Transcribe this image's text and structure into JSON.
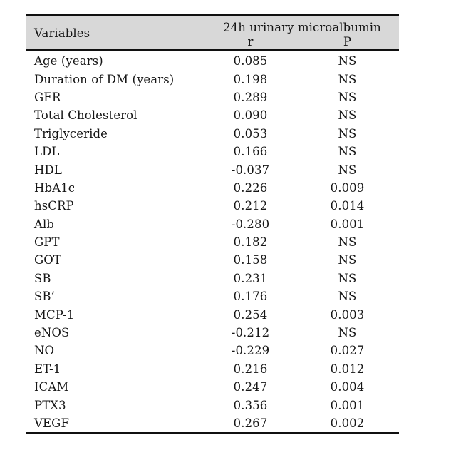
{
  "table": {
    "header": {
      "variables_label": "Variables",
      "group_label": "24h urinary microalbumin",
      "r_label": "r",
      "p_label": "P"
    },
    "rows": [
      {
        "variable": "Age (years)",
        "r": "0.085",
        "p": "NS"
      },
      {
        "variable": "Duration of DM (years)",
        "r": "0.198",
        "p": "NS"
      },
      {
        "variable": "GFR",
        "r": "0.289",
        "p": "NS"
      },
      {
        "variable": "Total Cholesterol",
        "r": "0.090",
        "p": "NS"
      },
      {
        "variable": "Triglyceride",
        "r": "0.053",
        "p": "NS"
      },
      {
        "variable": "LDL",
        "r": "0.166",
        "p": "NS"
      },
      {
        "variable": "HDL",
        "r": "-0.037",
        "p": "NS"
      },
      {
        "variable": "HbA1c",
        "r": "0.226",
        "p": "0.009"
      },
      {
        "variable": "hsCRP",
        "r": "0.212",
        "p": "0.014"
      },
      {
        "variable": "Alb",
        "r": "-0.280",
        "p": "0.001"
      },
      {
        "variable": "GPT",
        "r": "0.182",
        "p": "NS"
      },
      {
        "variable": "GOT",
        "r": "0.158",
        "p": "NS"
      },
      {
        "variable": "SB",
        "r": "0.231",
        "p": "NS"
      },
      {
        "variable": "SB’",
        "r": "0.176",
        "p": "NS"
      },
      {
        "variable": "MCP-1",
        "r": "0.254",
        "p": "0.003"
      },
      {
        "variable": "eNOS",
        "r": "-0.212",
        "p": "NS"
      },
      {
        "variable": "NO",
        "r": "-0.229",
        "p": "0.027"
      },
      {
        "variable": "ET-1",
        "r": "0.216",
        "p": "0.012"
      },
      {
        "variable": "ICAM",
        "r": "0.247",
        "p": "0.004"
      },
      {
        "variable": "PTX3",
        "r": "0.356",
        "p": "0.001"
      },
      {
        "variable": "VEGF",
        "r": "0.267",
        "p": "0.002"
      }
    ]
  },
  "colors": {
    "page_background": "#ffffff",
    "header_background": "#d8d8d8",
    "rule": "#101010",
    "text": "#161616"
  }
}
